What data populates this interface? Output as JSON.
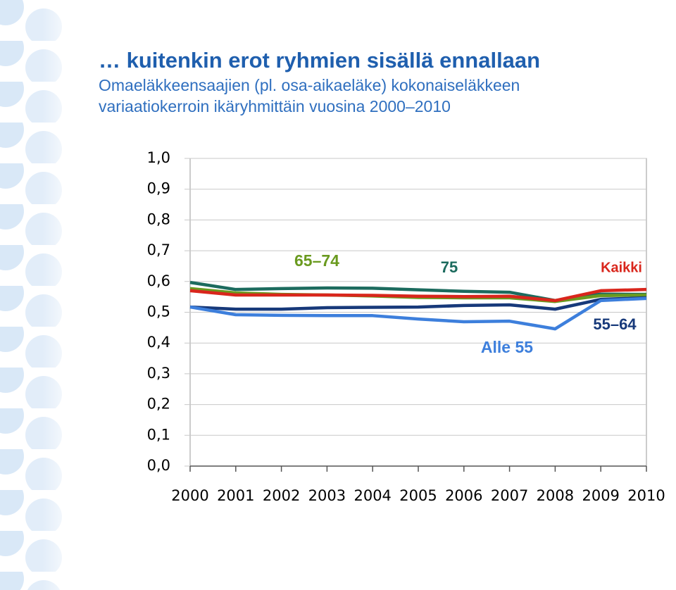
{
  "chart_data": {
    "type": "line",
    "title": "… kuitenkin erot ryhmien sisällä ennallaan",
    "subtitle": [
      "Omaeläkkeensaajien (pl. osa-aikaeläke) kokonaiseläkkeen",
      "variaatiokerroin ikäryhmittäin vuosina 2000–2010"
    ],
    "categories": [
      "2000",
      "2001",
      "2002",
      "2003",
      "2004",
      "2005",
      "2006",
      "2007",
      "2008",
      "2009",
      "2010"
    ],
    "series": [
      {
        "name": "75",
        "color": "#1c6b5e",
        "values": [
          0.597,
          0.574,
          0.577,
          0.579,
          0.578,
          0.573,
          0.568,
          0.565,
          0.538,
          0.559,
          0.558
        ]
      },
      {
        "name": "65–74",
        "color": "#6a9a1f",
        "values": [
          0.577,
          0.563,
          0.558,
          0.556,
          0.553,
          0.548,
          0.547,
          0.547,
          0.535,
          0.554,
          0.556
        ]
      },
      {
        "name": "Kaikki",
        "color": "#d9261c",
        "values": [
          0.57,
          0.556,
          0.556,
          0.556,
          0.555,
          0.552,
          0.551,
          0.552,
          0.538,
          0.57,
          0.574
        ]
      },
      {
        "name": "55–64",
        "color": "#17397a",
        "values": [
          0.517,
          0.51,
          0.51,
          0.515,
          0.516,
          0.517,
          0.522,
          0.524,
          0.51,
          0.542,
          0.547
        ]
      },
      {
        "name": "Alle 55",
        "color": "#3d7fdc",
        "values": [
          0.517,
          0.492,
          0.49,
          0.489,
          0.489,
          0.478,
          0.469,
          0.471,
          0.446,
          0.538,
          0.545
        ]
      }
    ],
    "ylim": [
      0,
      1
    ],
    "yticks": [
      {
        "value": 0,
        "label": "0,0"
      },
      {
        "value": 0.1,
        "label": "0,1"
      },
      {
        "value": 0.2,
        "label": "0,2"
      },
      {
        "value": 0.3,
        "label": "0,3"
      },
      {
        "value": 0.4,
        "label": "0,4"
      },
      {
        "value": 0.5,
        "label": "0,5"
      },
      {
        "value": 0.6,
        "label": "0,6"
      },
      {
        "value": 0.7,
        "label": "0,7"
      },
      {
        "value": 0.8,
        "label": "0,8"
      },
      {
        "value": 0.9,
        "label": "0,9"
      },
      {
        "value": 1,
        "label": "1,0"
      }
    ],
    "grid": true
  }
}
